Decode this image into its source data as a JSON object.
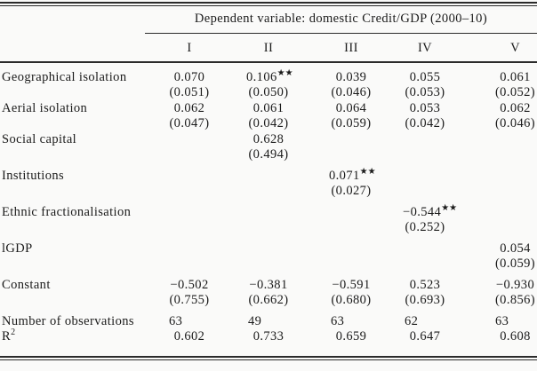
{
  "table": {
    "top_header": "Dependent variable: domestic Credit/GDP (2000–10)",
    "columns": [
      "I",
      "II",
      "III",
      "IV",
      "V"
    ],
    "rows": [
      {
        "label": "Geographical isolation",
        "values": [
          "0.070",
          "0.106",
          "0.039",
          "0.055",
          "0.061"
        ],
        "stars": [
          "",
          "★★",
          "",
          "",
          ""
        ],
        "se": [
          "(0.051)",
          "(0.050)",
          "(0.046)",
          "(0.053)",
          "(0.052)"
        ]
      },
      {
        "label": "Aerial isolation",
        "values": [
          "0.062",
          "0.061",
          "0.064",
          "0.053",
          "0.062"
        ],
        "stars": [
          "",
          "",
          "",
          "",
          ""
        ],
        "se": [
          "(0.047)",
          "(0.042)",
          "(0.059)",
          "(0.042)",
          "(0.046)"
        ]
      },
      {
        "label": "Social capital",
        "values": [
          "",
          "0.628",
          "",
          "",
          ""
        ],
        "stars": [
          "",
          "",
          "",
          "",
          ""
        ],
        "se": [
          "",
          "(0.494)",
          "",
          "",
          ""
        ]
      },
      {
        "label": "Institutions",
        "values": [
          "",
          "",
          "0.071",
          "",
          ""
        ],
        "stars": [
          "",
          "",
          "★★",
          "",
          ""
        ],
        "se": [
          "",
          "",
          "(0.027)",
          "",
          ""
        ]
      },
      {
        "label": "Ethnic fractionalisation",
        "values": [
          "",
          "",
          "",
          "−0.544",
          ""
        ],
        "stars": [
          "",
          "",
          "",
          "★★",
          ""
        ],
        "se": [
          "",
          "",
          "",
          "(0.252)",
          ""
        ]
      },
      {
        "label": "lGDP",
        "values": [
          "",
          "",
          "",
          "",
          "0.054"
        ],
        "stars": [
          "",
          "",
          "",
          "",
          ""
        ],
        "se": [
          "",
          "",
          "",
          "",
          "(0.059)"
        ]
      },
      {
        "label": "Constant",
        "values": [
          "−0.502",
          "−0.381",
          "−0.591",
          "0.523",
          "−0.930"
        ],
        "stars": [
          "",
          "",
          "",
          "",
          ""
        ],
        "se": [
          "(0.755)",
          "(0.662)",
          "(0.680)",
          "(0.693)",
          "(0.856)"
        ]
      }
    ],
    "stats": [
      {
        "label": "Number of observations",
        "values": [
          "63",
          "49",
          "63",
          "62",
          "63"
        ]
      },
      {
        "label": "R",
        "label_sup": "2",
        "values": [
          "0.602",
          "0.733",
          "0.659",
          "0.647",
          "0.608"
        ]
      }
    ]
  }
}
